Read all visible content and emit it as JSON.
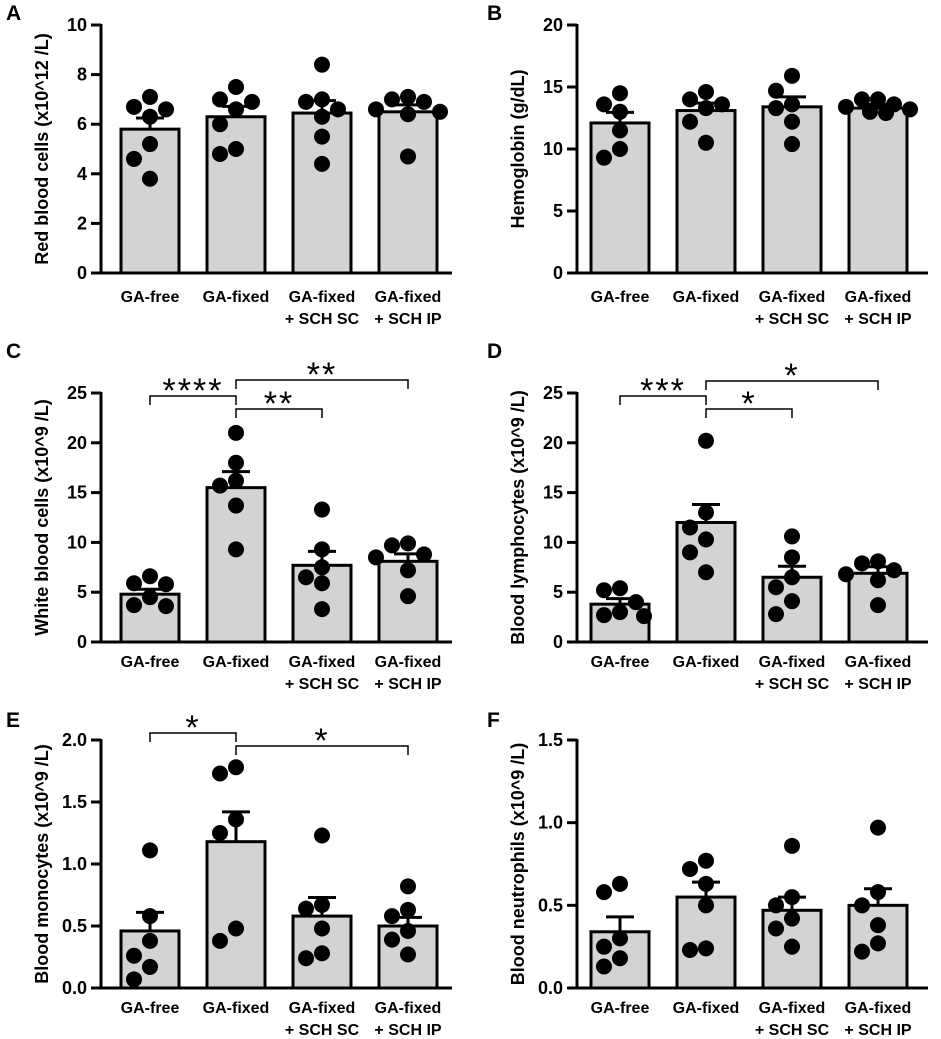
{
  "colors": {
    "bar_fill": "#d3d3d3",
    "ink": "#000000"
  },
  "chart_data": [
    {
      "panel": "A",
      "type": "bar",
      "ylabel": "Red blood cells (x10^12 /L)",
      "categories": [
        [
          "GA-free"
        ],
        [
          "GA-fixed"
        ],
        [
          "GA-fixed",
          "+ SCH SC"
        ],
        [
          "GA-fixed",
          "+ SCH IP"
        ]
      ],
      "values": [
        5.8,
        6.3,
        6.45,
        6.5
      ],
      "error": [
        0.45,
        0.42,
        0.5,
        0.28
      ],
      "points": [
        [
          7.1,
          6.7,
          6.6,
          6.3,
          5.2,
          4.6,
          3.8
        ],
        [
          7.5,
          7.0,
          6.9,
          6.6,
          6.0,
          5.0,
          4.8
        ],
        [
          8.4,
          7.0,
          6.9,
          6.6,
          6.3,
          5.5,
          4.4
        ],
        [
          7.1,
          7.0,
          6.9,
          6.6,
          6.5,
          6.4,
          4.7
        ]
      ],
      "ylim": [
        0,
        10
      ],
      "yticks": [
        0,
        2,
        4,
        6,
        8,
        10
      ],
      "ytick_labels": [
        "0",
        "2",
        "4",
        "6",
        "8",
        "10"
      ],
      "significance": []
    },
    {
      "panel": "B",
      "type": "bar",
      "ylabel": "Hemoglobin (g/dL)",
      "categories": [
        [
          "GA-free"
        ],
        [
          "GA-fixed"
        ],
        [
          "GA-fixed",
          "+ SCH SC"
        ],
        [
          "GA-fixed",
          "+ SCH IP"
        ]
      ],
      "values": [
        12.1,
        13.1,
        13.4,
        13.3
      ],
      "error": [
        0.85,
        0.6,
        0.8,
        0.3
      ],
      "points": [
        [
          14.5,
          13.6,
          13.0,
          11.5,
          10.0,
          9.3
        ],
        [
          14.6,
          14.0,
          13.6,
          13.3,
          12.2,
          10.5
        ],
        [
          15.9,
          14.7,
          13.6,
          13.3,
          12.2,
          10.4
        ],
        [
          14.0,
          14.0,
          13.6,
          13.4,
          13.2,
          13.0,
          12.9
        ]
      ],
      "ylim": [
        0,
        20
      ],
      "yticks": [
        0,
        5,
        10,
        15,
        20
      ],
      "ytick_labels": [
        "0",
        "5",
        "10",
        "15",
        "20"
      ],
      "significance": []
    },
    {
      "panel": "C",
      "type": "bar",
      "ylabel": "White blood cells (x10^9 /L)",
      "categories": [
        [
          "GA-free"
        ],
        [
          "GA-fixed"
        ],
        [
          "GA-fixed",
          "+ SCH SC"
        ],
        [
          "GA-fixed",
          "+ SCH IP"
        ]
      ],
      "values": [
        4.8,
        15.5,
        7.7,
        8.1
      ],
      "error": [
        0.5,
        1.6,
        1.4,
        0.75
      ],
      "points": [
        [
          6.6,
          5.9,
          5.8,
          4.5,
          3.7,
          3.6
        ],
        [
          21.0,
          18.0,
          16.2,
          15.7,
          13.7,
          9.3
        ],
        [
          13.3,
          9.3,
          7.5,
          6.5,
          5.9,
          3.3
        ],
        [
          9.9,
          9.7,
          8.8,
          8.5,
          7.2,
          4.6
        ]
      ],
      "ylim": [
        0,
        25
      ],
      "yticks": [
        0,
        5,
        10,
        15,
        20,
        25
      ],
      "ytick_labels": [
        "0",
        "5",
        "10",
        "15",
        "20",
        "25"
      ],
      "significance": [
        {
          "from": 0,
          "to": 1,
          "label": "****"
        },
        {
          "from": 1,
          "to": 3,
          "label": "**"
        },
        {
          "from": 1,
          "to": 2,
          "label": "**"
        }
      ]
    },
    {
      "panel": "D",
      "type": "bar",
      "ylabel": "Blood lymphocytes (x10^9 /L)",
      "categories": [
        [
          "GA-free"
        ],
        [
          "GA-fixed"
        ],
        [
          "GA-fixed",
          "+ SCH SC"
        ],
        [
          "GA-fixed",
          "+ SCH IP"
        ]
      ],
      "values": [
        3.8,
        12.0,
        6.5,
        6.9
      ],
      "error": [
        0.55,
        1.8,
        1.1,
        0.65
      ],
      "points": [
        [
          5.4,
          5.2,
          4.0,
          3.0,
          2.7,
          2.6
        ],
        [
          20.2,
          13.0,
          11.5,
          10.3,
          9.0,
          7.0
        ],
        [
          10.6,
          8.5,
          6.5,
          5.5,
          4.1,
          2.8
        ],
        [
          8.1,
          7.9,
          7.2,
          6.8,
          6.2,
          3.7
        ]
      ],
      "ylim": [
        0,
        25
      ],
      "yticks": [
        0,
        5,
        10,
        15,
        20,
        25
      ],
      "ytick_labels": [
        "0",
        "5",
        "10",
        "15",
        "20",
        "25"
      ],
      "significance": [
        {
          "from": 0,
          "to": 1,
          "label": "***"
        },
        {
          "from": 1,
          "to": 3,
          "label": "*"
        },
        {
          "from": 1,
          "to": 2,
          "label": "*"
        }
      ]
    },
    {
      "panel": "E",
      "type": "bar",
      "ylabel": "Blood monocytes (x10^9 /L)",
      "categories": [
        [
          "GA-free"
        ],
        [
          "GA-fixed"
        ],
        [
          "GA-fixed",
          "+ SCH SC"
        ],
        [
          "GA-fixed",
          "+ SCH IP"
        ]
      ],
      "values": [
        0.46,
        1.18,
        0.58,
        0.5
      ],
      "error": [
        0.15,
        0.24,
        0.15,
        0.07
      ],
      "points": [
        [
          1.11,
          0.58,
          0.38,
          0.26,
          0.17,
          0.07
        ],
        [
          1.78,
          1.73,
          1.36,
          1.25,
          0.48,
          0.38
        ],
        [
          1.23,
          0.67,
          0.64,
          0.48,
          0.28,
          0.24
        ],
        [
          0.82,
          0.63,
          0.58,
          0.46,
          0.39,
          0.27
        ]
      ],
      "ylim": [
        0,
        2
      ],
      "yticks": [
        0,
        0.5,
        1,
        1.5,
        2
      ],
      "ytick_labels": [
        "0.0",
        "0.5",
        "1.0",
        "1.5",
        "2.0"
      ],
      "significance": [
        {
          "from": 0,
          "to": 1,
          "label": "*"
        },
        {
          "from": 1,
          "to": 3,
          "label": "*"
        }
      ]
    },
    {
      "panel": "F",
      "type": "bar",
      "ylabel": "Blood neutrophils (x10^9 /L)",
      "categories": [
        [
          "GA-free"
        ],
        [
          "GA-fixed"
        ],
        [
          "GA-fixed",
          "+ SCH SC"
        ],
        [
          "GA-fixed",
          "+ SCH IP"
        ]
      ],
      "values": [
        0.34,
        0.55,
        0.47,
        0.5
      ],
      "error": [
        0.09,
        0.09,
        0.08,
        0.1
      ],
      "points": [
        [
          0.63,
          0.58,
          0.3,
          0.25,
          0.18,
          0.13
        ],
        [
          0.77,
          0.72,
          0.63,
          0.5,
          0.24,
          0.23
        ],
        [
          0.86,
          0.55,
          0.5,
          0.42,
          0.36,
          0.25
        ],
        [
          0.97,
          0.58,
          0.5,
          0.38,
          0.27,
          0.22
        ]
      ],
      "ylim": [
        0,
        1.5
      ],
      "yticks": [
        0,
        0.5,
        1,
        1.5
      ],
      "ytick_labels": [
        "0.0",
        "0.5",
        "1.0",
        "1.5"
      ],
      "significance": []
    }
  ]
}
